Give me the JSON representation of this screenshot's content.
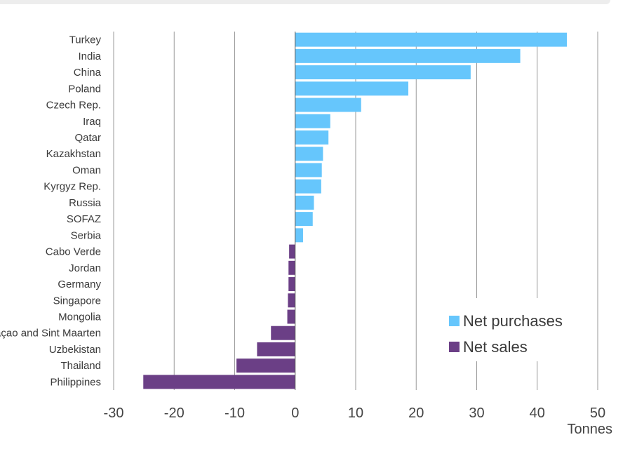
{
  "chart_data": {
    "type": "bar",
    "orientation": "horizontal",
    "categories": [
      "Turkey",
      "India",
      "China",
      "Poland",
      "Czech Rep.",
      "Iraq",
      "Qatar",
      "Kazakhstan",
      "Oman",
      "Kyrgyz Rep.",
      "Russia",
      "SOFAZ",
      "Serbia",
      "Cabo Verde",
      "Jordan",
      "Germany",
      "Singapore",
      "Mongolia",
      "Curaçao and Sint Maarten",
      "Uzbekistan",
      "Thailand",
      "Philippines"
    ],
    "values": [
      44.9,
      37.2,
      29.0,
      18.7,
      10.9,
      5.8,
      5.5,
      4.6,
      4.4,
      4.3,
      3.1,
      2.9,
      1.3,
      -1.0,
      -1.1,
      -1.1,
      -1.2,
      -1.3,
      -4.0,
      -6.3,
      -9.7,
      -25.1
    ],
    "series": [
      {
        "name": "Net purchases",
        "color": "#66c6fc"
      },
      {
        "name": "Net sales",
        "color": "#6b3f86"
      }
    ],
    "xlabel": "Tonnes",
    "xlim": [
      -30,
      50
    ],
    "xticks": [
      -30,
      -20,
      -10,
      0,
      10,
      20,
      30,
      40,
      50
    ],
    "grid": "vertical",
    "legend_position": "bottom-right"
  }
}
